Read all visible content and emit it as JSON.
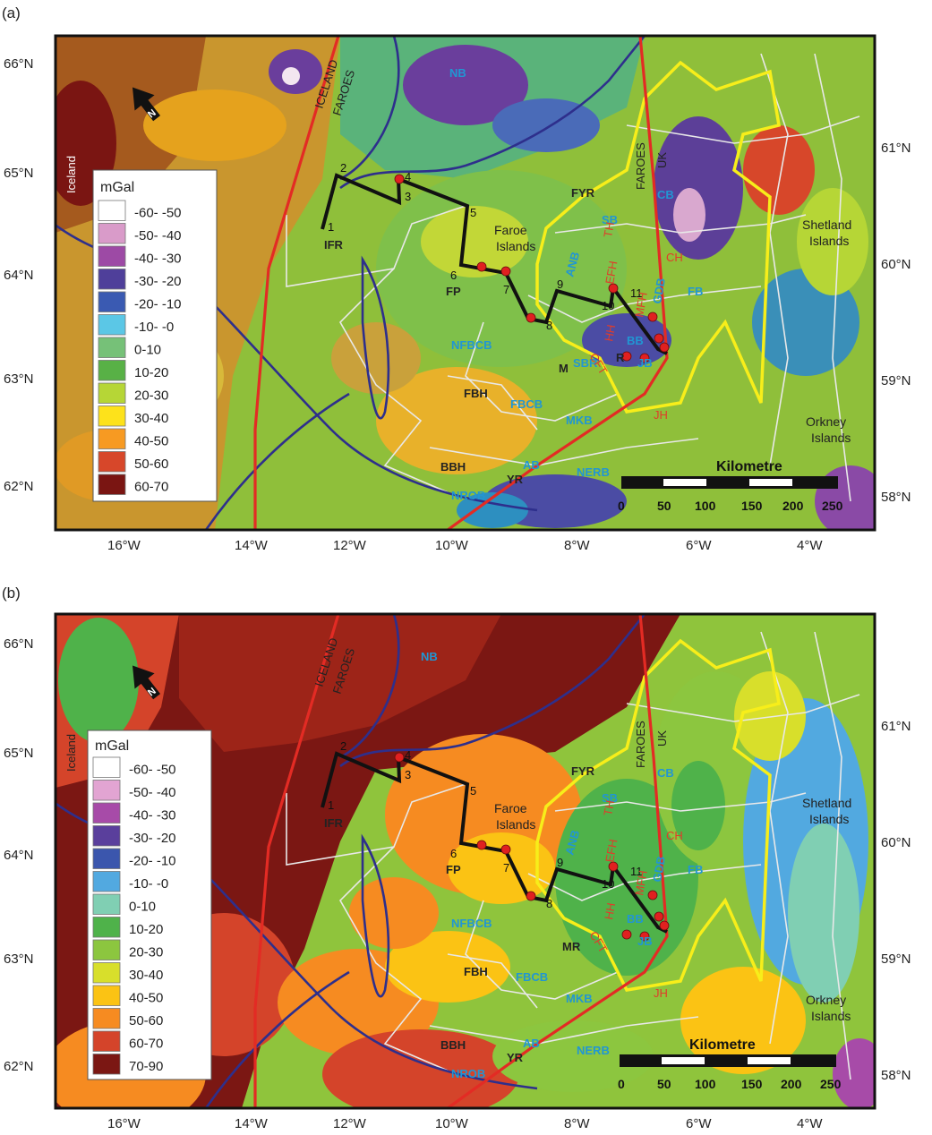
{
  "panels": [
    {
      "label": "(a)",
      "north_label": "N",
      "scale_title": "Kilometre",
      "scale_ticks": [
        "0",
        "50",
        "100",
        "150",
        "200",
        "250"
      ],
      "legend": {
        "title": "mGal",
        "items": [
          {
            "label": "-60- -50",
            "color": "#ffffff"
          },
          {
            "label": "-50- -40",
            "color": "#d99bc9"
          },
          {
            "label": "-40- -30",
            "color": "#9d4aa5"
          },
          {
            "label": "-30- -20",
            "color": "#4f3f9a"
          },
          {
            "label": "-20- -10",
            "color": "#3a5ab2"
          },
          {
            "label": "-10- -0",
            "color": "#5bc7e6"
          },
          {
            "label": "0-10",
            "color": "#76c178"
          },
          {
            "label": "10-20",
            "color": "#58b146"
          },
          {
            "label": "20-30",
            "color": "#b6d636"
          },
          {
            "label": "30-40",
            "color": "#fde21b"
          },
          {
            "label": "40-50",
            "color": "#f79a22"
          },
          {
            "label": "50-60",
            "color": "#d7472a"
          },
          {
            "label": "60-70",
            "color": "#7a1512"
          }
        ]
      },
      "lat_left": [
        "66°N",
        "65°N",
        "64°N",
        "63°N",
        "62°N"
      ],
      "lat_right": [
        "61°N",
        "60°N",
        "59°N",
        "58°N"
      ],
      "lon_bottom": [
        "16°W",
        "14°W",
        "12°W",
        "10°W",
        "8°W",
        "6°W",
        "4°W"
      ]
    },
    {
      "label": "(b)",
      "north_label": "N",
      "scale_title": "Kilometre",
      "scale_ticks": [
        "0",
        "50",
        "100",
        "150",
        "200",
        "250"
      ],
      "legend": {
        "title": "mGal",
        "items": [
          {
            "label": "-60- -50",
            "color": "#ffffff"
          },
          {
            "label": "-50- -40",
            "color": "#e2a4d2"
          },
          {
            "label": "-40- -30",
            "color": "#a74ba8"
          },
          {
            "label": "-30- -20",
            "color": "#5a3f9c"
          },
          {
            "label": "-20- -10",
            "color": "#3b56ad"
          },
          {
            "label": "-10- -0",
            "color": "#52a9e0"
          },
          {
            "label": "0-10",
            "color": "#80cfb3"
          },
          {
            "label": "10-20",
            "color": "#4fb24a"
          },
          {
            "label": "20-30",
            "color": "#8cc63f"
          },
          {
            "label": "30-40",
            "color": "#d8df2b"
          },
          {
            "label": "40-50",
            "color": "#fbc314"
          },
          {
            "label": "50-60",
            "color": "#f68b21"
          },
          {
            "label": "60-70",
            "color": "#d4442a"
          },
          {
            "label": "70-90",
            "color": "#7b1713"
          }
        ]
      },
      "lat_left": [
        "66°N",
        "65°N",
        "64°N",
        "63°N",
        "62°N"
      ],
      "lat_right": [
        "61°N",
        "60°N",
        "59°N",
        "58°N"
      ],
      "lon_bottom": [
        "16°W",
        "14°W",
        "12°W",
        "10°W",
        "8°W",
        "6°W",
        "4°W"
      ]
    }
  ],
  "place_labels": {
    "iceland": "Iceland",
    "iceland_boundary": "ICELAND",
    "faroes_boundary": "FAROES",
    "faroes_uk_1": "FAROES",
    "faroes_uk_2": "UK",
    "faroe_islands": [
      "Faroe",
      "Islands"
    ],
    "shetland": [
      "Shetland",
      "Islands"
    ],
    "orkney": [
      "Orkney",
      "Islands"
    ]
  },
  "feature_labels": {
    "black": [
      "IFR",
      "FP",
      "FYR",
      "FBH",
      "BBH",
      "YR",
      "M",
      "R",
      "MR"
    ],
    "blue": [
      "NB",
      "CB",
      "SB",
      "ANB",
      "FB",
      "GDB",
      "BB",
      "JB",
      "SBR",
      "NFBCB",
      "FBCB",
      "MKB",
      "AB",
      "NERB",
      "NROB"
    ],
    "red": [
      "TH",
      "EFH",
      "CH",
      "MFH",
      "HH",
      "CFT",
      "JH"
    ]
  },
  "profile_points": [
    "1",
    "2",
    "3",
    "4",
    "5",
    "6",
    "7",
    "8",
    "9",
    "10",
    "11"
  ],
  "colors": {
    "boundary_red": "#e32b24",
    "basin_outline_yellow": "#f7ee1a",
    "blue_line": "#2e2f8c",
    "profile_black": "#111111",
    "survey_dot_red": "#e02020",
    "structure_white": "#e8e8e8",
    "label_blue": "#2196d3"
  }
}
